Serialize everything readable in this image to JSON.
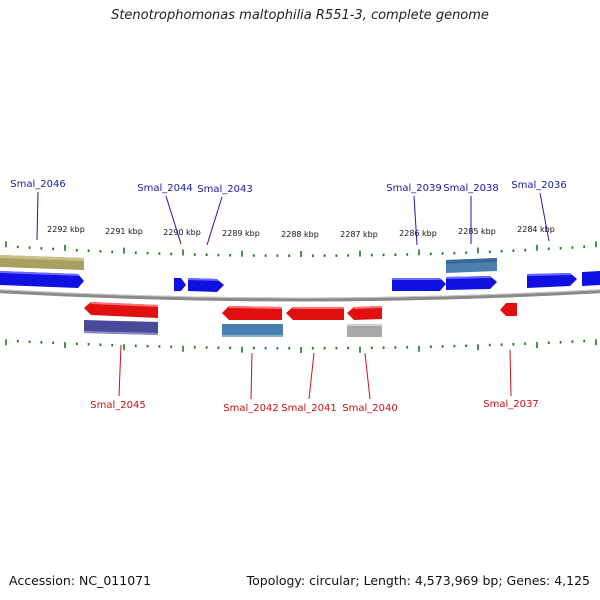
{
  "header": {
    "title": "Stenotrophomonas maltophilia R551-3, complete genome"
  },
  "footer": {
    "accession": "Accession: NC_011071",
    "summary": "Topology: circular; Length: 4,573,969 bp; Genes: 4,125"
  },
  "colors": {
    "forward_gene": "#1010e0",
    "reverse_gene": "#e01010",
    "top_label": "#1a1aa8",
    "bottom_label": "#cc1111",
    "tick": "#1a7a1a",
    "backbone": "#888888",
    "olive_band": "#a8a060",
    "steelblue_band": "#4a80b0",
    "slate_band": "#4a4a98",
    "grey_band": "#a8a8a8"
  },
  "kbp_labels": [
    "2292 kbp",
    "2291 kbp",
    "2290 kbp",
    "2289 kbp",
    "2288 kbp",
    "2287 kbp",
    "2286 kbp",
    "2285 kbp",
    "2284 kbp"
  ],
  "top_gene_labels": [
    "Smal_2046",
    "Smal_2044",
    "Smal_2043",
    "Smal_2039",
    "Smal_2038",
    "Smal_2036"
  ],
  "bottom_gene_labels": [
    "Smal_2045",
    "Smal_2042",
    "Smal_2041",
    "Smal_2040",
    "Smal_2037"
  ]
}
